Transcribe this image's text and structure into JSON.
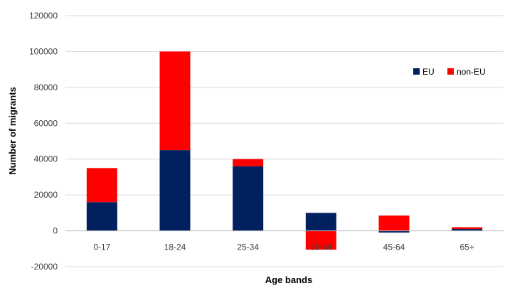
{
  "chart_data": {
    "type": "bar",
    "stacked": true,
    "categories": [
      "0-17",
      "18-24",
      "25-34",
      "35-44",
      "45-64",
      "65+"
    ],
    "series": [
      {
        "name": "EU",
        "color": "#002060",
        "values": [
          16000,
          45000,
          36000,
          10000,
          -1000,
          1000
        ]
      },
      {
        "name": "non-EU",
        "color": "#ff0000",
        "values": [
          19000,
          55000,
          4000,
          -10500,
          8500,
          1000
        ]
      }
    ],
    "xlabel": "Age bands",
    "ylabel": "Number of migrants",
    "ylim": [
      -20000,
      120000
    ],
    "yticks": [
      -20000,
      0,
      20000,
      40000,
      60000,
      80000,
      100000,
      120000
    ],
    "grid": true,
    "legend_position": "top-right"
  }
}
